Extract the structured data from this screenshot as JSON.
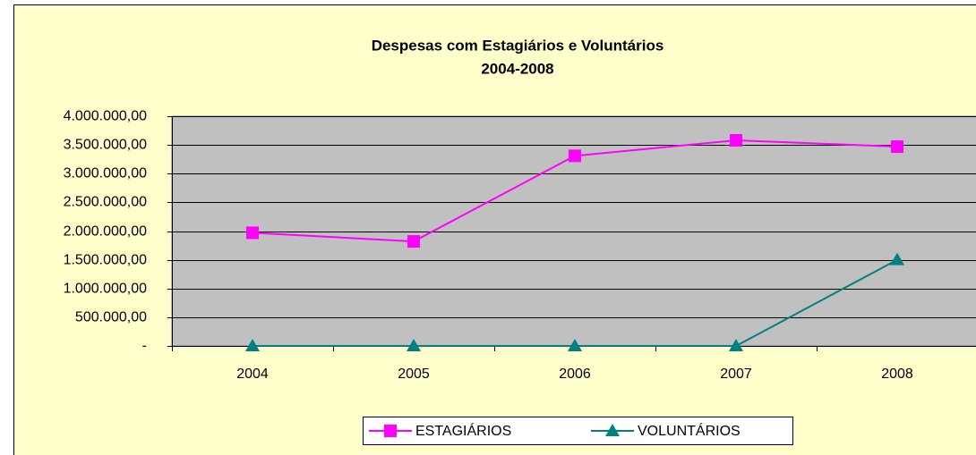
{
  "chart_data": {
    "type": "line",
    "title": "Despesas com Estagiários e Voluntários",
    "subtitle": "2004-2008",
    "categories": [
      "2004",
      "2005",
      "2006",
      "2007",
      "2008"
    ],
    "series": [
      {
        "name": "ESTAGIÁRIOS",
        "color": "#ff00ff",
        "marker": "square",
        "values": [
          1970000,
          1820000,
          3310000,
          3580000,
          3470000
        ]
      },
      {
        "name": "VOLUNTÁRIOS",
        "color": "#008080",
        "marker": "triangle",
        "values": [
          0,
          0,
          0,
          0,
          1500000
        ]
      }
    ],
    "ylim": [
      0,
      4000000
    ],
    "yticks": [
      {
        "value": 0,
        "label": "-"
      },
      {
        "value": 500000,
        "label": "500.000,00"
      },
      {
        "value": 1000000,
        "label": "1.000.000,00"
      },
      {
        "value": 1500000,
        "label": "1.500.000,00"
      },
      {
        "value": 2000000,
        "label": "2.000.000,00"
      },
      {
        "value": 2500000,
        "label": "2.500.000,00"
      },
      {
        "value": 3000000,
        "label": "3.000.000,00"
      },
      {
        "value": 3500000,
        "label": "3.500.000,00"
      },
      {
        "value": 4000000,
        "label": "4.000.000,00"
      }
    ],
    "grid": true,
    "legend": "bottom"
  }
}
